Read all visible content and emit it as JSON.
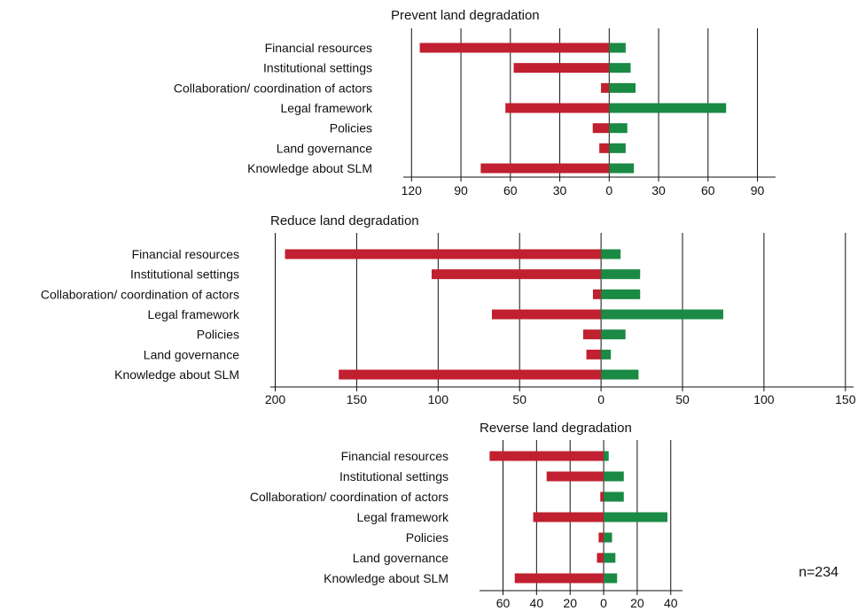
{
  "colors": {
    "negative": "#c0202f",
    "positive": "#1a8a44",
    "axis": "#111111",
    "grid": "#111111"
  },
  "note": "n=234",
  "chart_data": [
    {
      "type": "bar",
      "orientation": "horizontal-diverging",
      "title": "Prevent land degradation",
      "categories": [
        "Financial resources",
        "Institutional settings",
        "Collaboration/ coordination of actors",
        "Legal framework",
        "Policies",
        "Land governance",
        "Knowledge about SLM"
      ],
      "series": [
        {
          "color": "#c0202f",
          "values": [
            -115,
            -58,
            -5,
            -63,
            -10,
            -6,
            -78
          ]
        },
        {
          "color": "#1a8a44",
          "values": [
            10,
            13,
            16,
            71,
            11,
            10,
            15
          ]
        }
      ],
      "xlim": [
        -125,
        101
      ],
      "ticks": [
        -120,
        -90,
        -60,
        -30,
        0,
        30,
        60,
        90
      ],
      "tick_labels": [
        "120",
        "90",
        "60",
        "30",
        "0",
        "30",
        "60",
        "90"
      ],
      "grid": true
    },
    {
      "type": "bar",
      "orientation": "horizontal-diverging",
      "title": "Reduce land degradation",
      "categories": [
        "Financial resources",
        "Institutional settings",
        "Collaboration/ coordination of actors",
        "Legal framework",
        "Policies",
        "Land governance",
        "Knowledge about SLM"
      ],
      "series": [
        {
          "color": "#c0202f",
          "values": [
            -194,
            -104,
            -5,
            -67,
            -11,
            -9,
            -161
          ]
        },
        {
          "color": "#1a8a44",
          "values": [
            12,
            24,
            24,
            75,
            15,
            6,
            23
          ]
        }
      ],
      "xlim": [
        -203,
        155
      ],
      "ticks": [
        -200,
        -150,
        -100,
        -50,
        0,
        50,
        100,
        150
      ],
      "tick_labels": [
        "200",
        "150",
        "100",
        "50",
        "0",
        "50",
        "100",
        "150"
      ],
      "grid": true
    },
    {
      "type": "bar",
      "orientation": "horizontal-diverging",
      "title": "Reverse land degradation",
      "categories": [
        "Financial resources",
        "Institutional settings",
        "Collaboration/ coordination of actors",
        "Legal framework",
        "Policies",
        "Land governance",
        "Knowledge about SLM"
      ],
      "series": [
        {
          "color": "#c0202f",
          "values": [
            -68,
            -34,
            -2,
            -42,
            -3,
            -4,
            -53
          ]
        },
        {
          "color": "#1a8a44",
          "values": [
            3,
            12,
            12,
            38,
            5,
            7,
            8
          ]
        }
      ],
      "xlim": [
        -74,
        47
      ],
      "ticks": [
        -60,
        -40,
        -20,
        0,
        20,
        40
      ],
      "tick_labels": [
        "60",
        "40",
        "20",
        "0",
        "20",
        "40"
      ],
      "grid": true
    }
  ]
}
